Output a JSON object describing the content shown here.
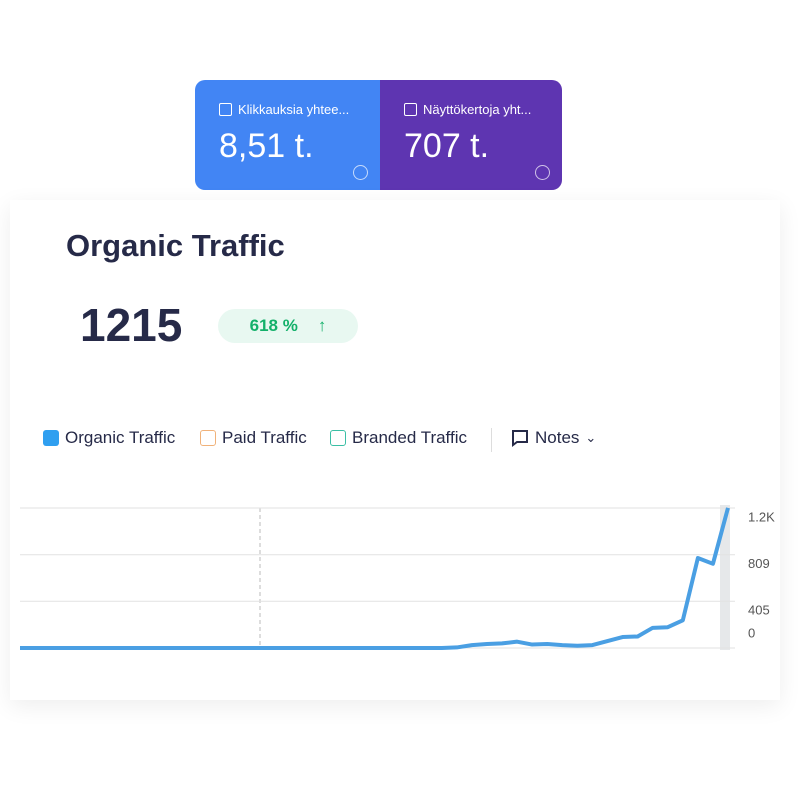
{
  "cards": [
    {
      "label": "Klikkauksia yhtee...",
      "value": "8,51 t."
    },
    {
      "label": "Näyttökertoja yht...",
      "value": "707 t."
    }
  ],
  "widget": {
    "title": "Organic Traffic",
    "total": "1215",
    "change": "618 %"
  },
  "legend": {
    "others": [
      "Paid Traffic",
      "Branded Traffic"
    ],
    "notes": "Notes"
  },
  "chart_data": {
    "type": "line",
    "series": [
      {
        "name": "Organic Traffic",
        "color": "#4a9fe3",
        "values": [
          0,
          0,
          0,
          0,
          0,
          0,
          0,
          0,
          0,
          0,
          0,
          0,
          0,
          0,
          0,
          0,
          0,
          0,
          0,
          0,
          0,
          0,
          0,
          0,
          0,
          0,
          0,
          0,
          0,
          5,
          25,
          35,
          40,
          55,
          30,
          35,
          25,
          20,
          25,
          60,
          95,
          100,
          175,
          180,
          240,
          780,
          730,
          1215
        ]
      }
    ],
    "ylim": [
      0,
      1214
    ],
    "yticks": [
      0,
      405,
      809,
      {
        "value": 1214,
        "label": "1.2K"
      }
    ],
    "grid": true
  }
}
